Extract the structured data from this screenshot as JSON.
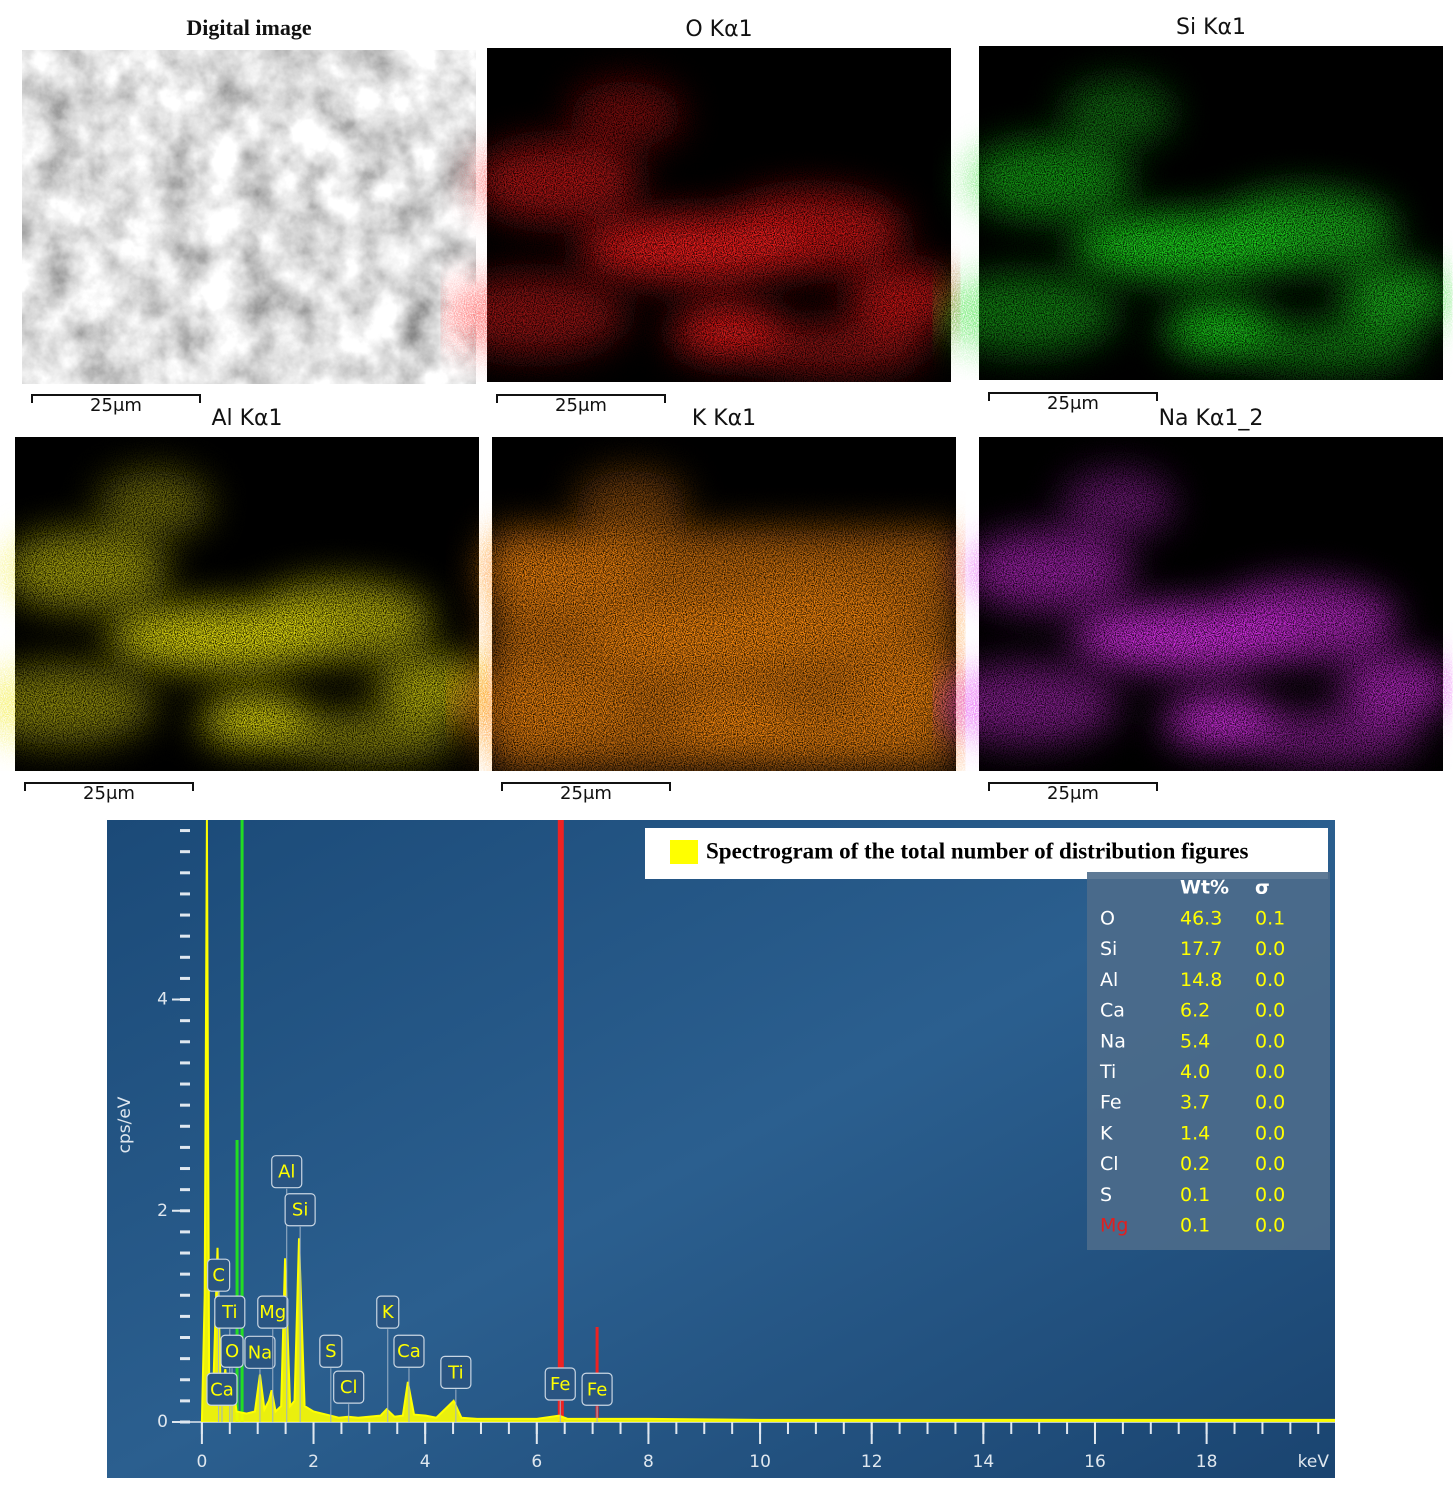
{
  "panels": [
    {
      "title": "Digital image",
      "scale_label": "25μm",
      "color": "#9a9a9a"
    },
    {
      "title": "O Kα1",
      "scale_label": "25μm",
      "color": "#ff1a1a"
    },
    {
      "title": "Si Kα1",
      "scale_label": "25μm",
      "color": "#1ee01e"
    },
    {
      "title": "Al Kα1",
      "scale_label": "25μm",
      "color": "#f0ea10"
    },
    {
      "title": "K Kα1",
      "scale_label": "25μm",
      "color": "#ff8c10"
    },
    {
      "title": "Na Kα1_2",
      "scale_label": "25μm",
      "color": "#e030f0"
    }
  ],
  "chart_data": {
    "type": "line",
    "xlabel": "keV",
    "ylabel": "cps/eV",
    "legend_title": "Spectrogram of the total number of distribution figures",
    "color": "#ffff00",
    "x": [
      0,
      0.05,
      0.09,
      0.13,
      0.2,
      0.28,
      0.34,
      0.42,
      0.48,
      0.55,
      0.62,
      0.8,
      0.95,
      1.04,
      1.12,
      1.2,
      1.25,
      1.32,
      1.42,
      1.49,
      1.58,
      1.66,
      1.74,
      1.84,
      2.0,
      2.31,
      2.45,
      2.62,
      2.8,
      3.2,
      3.31,
      3.45,
      3.6,
      3.69,
      3.8,
      4.01,
      4.2,
      4.51,
      4.65,
      4.93,
      5.2,
      6.0,
      6.4,
      6.55,
      7.06,
      8,
      10,
      12,
      14,
      16,
      18,
      20.3
    ],
    "values": [
      0,
      1.2,
      5.7,
      0.4,
      0.25,
      1.65,
      0.2,
      0.5,
      0.15,
      0.4,
      0.1,
      0.08,
      0.1,
      0.45,
      0.12,
      0.2,
      0.3,
      0.1,
      0.15,
      1.55,
      0.15,
      0.2,
      1.74,
      0.15,
      0.1,
      0.06,
      0.04,
      0.05,
      0.04,
      0.06,
      0.12,
      0.05,
      0.06,
      0.38,
      0.07,
      0.06,
      0.04,
      0.2,
      0.04,
      0.03,
      0.03,
      0.03,
      0.06,
      0.03,
      0.03,
      0.03,
      0.02,
      0.02,
      0.02,
      0.02,
      0.02,
      0.02
    ],
    "xlim": [
      -1.7,
      20.3
    ],
    "ylim": [
      0,
      5.7
    ],
    "xticks": [
      0,
      2,
      4,
      6,
      8,
      10,
      12,
      14,
      16,
      18
    ],
    "yticks": [
      0,
      2,
      4
    ],
    "xminor_step": 0.5,
    "yminor_step": 0.2,
    "element_lines": [
      {
        "x": 0.63,
        "y": 2.67,
        "color": "#22dd22"
      },
      {
        "x": 0.72,
        "y": 5.7,
        "color": "#22dd22"
      },
      {
        "x": 6.43,
        "y": 5.7,
        "color": "#ee2222"
      },
      {
        "x": 7.08,
        "y": 0.9,
        "color": "#ee2222"
      }
    ],
    "peak_labels": [
      {
        "text": "C",
        "x": 0.3,
        "y": 1.39
      },
      {
        "text": "Ti",
        "x": 0.5,
        "y": 1.04
      },
      {
        "text": "O",
        "x": 0.54,
        "y": 0.67
      },
      {
        "text": "Ca",
        "x": 0.36,
        "y": 0.31
      },
      {
        "text": "Na",
        "x": 1.04,
        "y": 0.66
      },
      {
        "text": "Mg",
        "x": 1.27,
        "y": 1.04
      },
      {
        "text": "Al",
        "x": 1.52,
        "y": 2.37
      },
      {
        "text": "Si",
        "x": 1.76,
        "y": 2.01
      },
      {
        "text": "S",
        "x": 2.31,
        "y": 0.67
      },
      {
        "text": "Cl",
        "x": 2.63,
        "y": 0.33
      },
      {
        "text": "K",
        "x": 3.33,
        "y": 1.04
      },
      {
        "text": "Ca",
        "x": 3.71,
        "y": 0.67
      },
      {
        "text": "Ti",
        "x": 4.55,
        "y": 0.47
      },
      {
        "text": "Fe",
        "x": 6.42,
        "y": 0.36
      },
      {
        "text": "Fe",
        "x": 7.08,
        "y": 0.31
      }
    ],
    "table": {
      "header": [
        "Wt%",
        "σ"
      ],
      "rows": [
        [
          "O",
          "46.3",
          "0.1"
        ],
        [
          "Si",
          "17.7",
          "0.0"
        ],
        [
          "Al",
          "14.8",
          "0.0"
        ],
        [
          "Ca",
          "6.2",
          "0.0"
        ],
        [
          "Na",
          "5.4",
          "0.0"
        ],
        [
          "Ti",
          "4.0",
          "0.0"
        ],
        [
          "Fe",
          "3.7",
          "0.0"
        ],
        [
          "K",
          "1.4",
          "0.0"
        ],
        [
          "Cl",
          "0.2",
          "0.0"
        ],
        [
          "S",
          "0.1",
          "0.0"
        ],
        [
          "Mg",
          "0.1",
          "0.0"
        ]
      ],
      "highlighted_rows": [
        10
      ],
      "highlight_color": "#e02020"
    }
  }
}
